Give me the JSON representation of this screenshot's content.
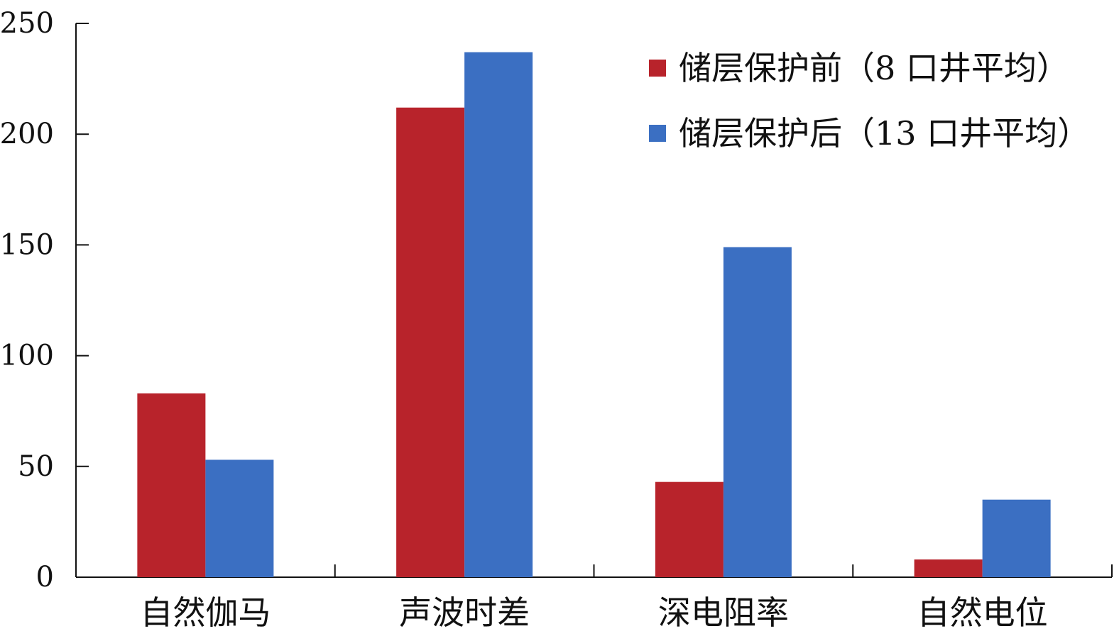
{
  "chart_data": {
    "type": "bar",
    "categories": [
      "自然伽马",
      "声波时差",
      "深电阻率",
      "自然电位"
    ],
    "series": [
      {
        "name": "储层保护前（8 口井平均）",
        "values": [
          83,
          212,
          43,
          8
        ],
        "color": "#B8232B"
      },
      {
        "name": "储层保护后（13 口井平均）",
        "values": [
          53,
          237,
          149,
          35
        ],
        "color": "#3B6FC2"
      }
    ],
    "ylim": [
      0,
      250
    ],
    "yticks": [
      0,
      50,
      100,
      150,
      200,
      250
    ],
    "title": "",
    "xlabel": "",
    "ylabel": "",
    "grid": false,
    "legend_position": "top-right"
  }
}
